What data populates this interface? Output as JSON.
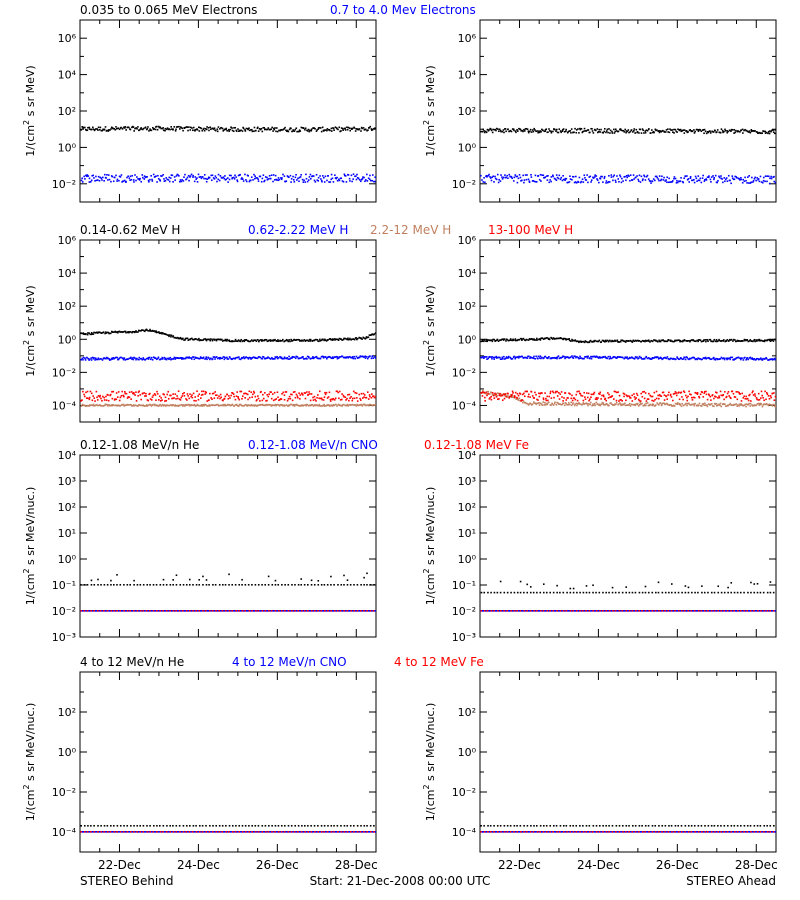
{
  "figure": {
    "footer_left": "STEREO Behind",
    "footer_center": "Start: 21-Dec-2008 00:00 UTC",
    "footer_right": "STEREO Ahead",
    "x_tick_labels": [
      "22-Dec",
      "24-Dec",
      "26-Dec",
      "28-Dec"
    ]
  },
  "colors": {
    "black": "#000000",
    "blue": "#0000ff",
    "tan": "#c08060",
    "red": "#ff0000",
    "grey": "#808080"
  },
  "chart_data": [
    {
      "type": "scatter",
      "panel": "electrons-behind",
      "ylabel_main": "1/(cm",
      "ylabel_sup": "2",
      "ylabel_tail": " s sr MeV)",
      "yscale": "log",
      "ylim_exp": [
        -3,
        7
      ],
      "ytick_exponents": [
        -2,
        0,
        2,
        4,
        6
      ],
      "ytick_style": "power",
      "x_unit": "days from start (21-Dec-2008 00:00 UTC)",
      "xlim": [
        0,
        7.5
      ],
      "xticks": [
        1,
        3,
        5,
        7
      ],
      "headers": [
        {
          "text": "0.035 to 0.065 MeV Electrons",
          "color": "black"
        },
        {
          "text": "0.7 to 4.0 Mev Electrons",
          "color": "blue"
        }
      ],
      "series": [
        {
          "name": "0.035 to 0.065 MeV Electrons",
          "color": "black",
          "log_level": [
            [
              0,
              1.0
            ],
            [
              2,
              1.02
            ],
            [
              4,
              0.98
            ],
            [
              6,
              0.97
            ],
            [
              7.3,
              1.0
            ],
            [
              7.5,
              1.1
            ]
          ],
          "spread": 0.12
        },
        {
          "name": "0.7 to 4.0 Mev Electrons",
          "color": "blue",
          "log_level": [
            [
              0,
              -1.7
            ],
            [
              7.5,
              -1.7
            ]
          ],
          "spread": 0.22
        }
      ]
    },
    {
      "type": "scatter",
      "panel": "electrons-ahead",
      "ylabel_main": "1/(cm",
      "ylabel_sup": "2",
      "ylabel_tail": " s sr MeV)",
      "yscale": "log",
      "ylim_exp": [
        -3,
        7
      ],
      "ytick_exponents": [
        -2,
        0,
        2,
        4,
        6
      ],
      "ytick_style": "power",
      "xlim": [
        0,
        7.5
      ],
      "xticks": [
        1,
        3,
        5,
        7
      ],
      "headers": [],
      "series": [
        {
          "name": "0.035 to 0.065 MeV Electrons",
          "color": "black",
          "log_level": [
            [
              0,
              0.93
            ],
            [
              3,
              0.9
            ],
            [
              7.5,
              0.86
            ]
          ],
          "spread": 0.12
        },
        {
          "name": "0.7 to 4.0 Mev Electrons",
          "color": "blue",
          "log_level": [
            [
              0,
              -1.72
            ],
            [
              7.5,
              -1.78
            ]
          ],
          "spread": 0.22
        }
      ]
    },
    {
      "type": "scatter",
      "panel": "protons-behind",
      "ylabel_main": "1/(cm",
      "ylabel_sup": "2",
      "ylabel_tail": " s sr MeV)",
      "yscale": "log",
      "ylim_exp": [
        -5,
        6
      ],
      "ytick_exponents": [
        -4,
        -2,
        0,
        2,
        4,
        6
      ],
      "ytick_style": "power",
      "xlim": [
        0,
        7.5
      ],
      "xticks": [
        1,
        3,
        5,
        7
      ],
      "headers": [
        {
          "text": "0.14-0.62 MeV H",
          "color": "black"
        },
        {
          "text": "0.62-2.22 MeV H",
          "color": "blue"
        },
        {
          "text": "2.2-12 MeV H",
          "color": "tan"
        },
        {
          "text": "13-100 MeV H",
          "color": "red"
        }
      ],
      "series": [
        {
          "name": "0.14-0.62 MeV H",
          "color": "black",
          "log_level": [
            [
              0,
              0.3
            ],
            [
              0.8,
              0.4
            ],
            [
              1.3,
              0.45
            ],
            [
              1.7,
              0.55
            ],
            [
              2.1,
              0.3
            ],
            [
              2.6,
              0.0
            ],
            [
              4,
              -0.1
            ],
            [
              6,
              -0.08
            ],
            [
              7.2,
              0.05
            ],
            [
              7.5,
              0.4
            ]
          ],
          "spread": 0.06
        },
        {
          "name": "0.62-2.22 MeV H",
          "color": "blue",
          "log_level": [
            [
              0,
              -1.2
            ],
            [
              7.5,
              -1.1
            ]
          ],
          "spread": 0.08
        },
        {
          "name": "2.2-12 MeV H",
          "color": "tan",
          "log_level": [
            [
              0,
              -4.0
            ],
            [
              7.5,
              -4.0
            ]
          ],
          "spread": 0.05
        },
        {
          "name": "13-100 MeV H",
          "color": "red",
          "log_level": [
            [
              0,
              -3.45
            ],
            [
              7.5,
              -3.45
            ]
          ],
          "spread": 0.3
        }
      ]
    },
    {
      "type": "scatter",
      "panel": "protons-ahead",
      "ylabel_main": "1/(cm",
      "ylabel_sup": "2",
      "ylabel_tail": " s sr MeV)",
      "yscale": "log",
      "ylim_exp": [
        -5,
        6
      ],
      "ytick_exponents": [
        -4,
        -2,
        0,
        2,
        4,
        6
      ],
      "ytick_style": "power",
      "xlim": [
        0,
        7.5
      ],
      "xticks": [
        1,
        3,
        5,
        7
      ],
      "headers": [],
      "series": [
        {
          "name": "0.14-0.62 MeV H",
          "color": "black",
          "log_level": [
            [
              0,
              -0.1
            ],
            [
              1.5,
              0.0
            ],
            [
              2.0,
              0.05
            ],
            [
              2.5,
              -0.15
            ],
            [
              5,
              -0.1
            ],
            [
              7.5,
              -0.08
            ]
          ],
          "spread": 0.06
        },
        {
          "name": "0.62-2.22 MeV H",
          "color": "blue",
          "log_level": [
            [
              0,
              -1.15
            ],
            [
              2,
              -1.1
            ],
            [
              7.5,
              -1.2
            ]
          ],
          "spread": 0.08
        },
        {
          "name": "2.2-12 MeV H",
          "color": "tan",
          "log_level": [
            [
              0,
              -3.2
            ],
            [
              0.8,
              -3.45
            ],
            [
              1.2,
              -3.9
            ],
            [
              7.5,
              -4.0
            ]
          ],
          "spread": 0.1
        },
        {
          "name": "13-100 MeV H",
          "color": "red",
          "log_level": [
            [
              0,
              -3.45
            ],
            [
              7.5,
              -3.45
            ]
          ],
          "spread": 0.3
        }
      ]
    },
    {
      "type": "scatter",
      "panel": "low-ions-behind",
      "ylabel_main": "1/(cm",
      "ylabel_sup": "2",
      "ylabel_tail": " s sr MeV/nuc.)",
      "yscale": "log",
      "ylim_exp": [
        -3,
        4
      ],
      "ytick_exponents": [
        -3,
        -2,
        -1,
        0,
        1,
        2,
        3,
        4
      ],
      "ytick_style": "power",
      "xlim": [
        0,
        7.5
      ],
      "xticks": [
        1,
        3,
        5,
        7
      ],
      "headers": [
        {
          "text": "0.12-1.08 MeV/n He",
          "color": "black"
        },
        {
          "text": "0.12-1.08 MeV/n CNO",
          "color": "blue"
        },
        {
          "text": "0.12-1.08 MeV Fe",
          "color": "red"
        }
      ],
      "series": [
        {
          "name": "0.12-1.08 MeV/n He",
          "color": "black",
          "log_level": [
            [
              0,
              -1.0
            ],
            [
              7.5,
              -1.0
            ]
          ],
          "spread": 0.0,
          "extra_levels": [
            -0.7
          ],
          "sparse": true
        },
        {
          "name": "0.12-1.08 MeV/n CNO",
          "color": "blue",
          "log_level": [
            [
              0,
              -2.0
            ],
            [
              7.5,
              -2.0
            ]
          ],
          "spread": 0.0
        },
        {
          "name": "0.12-1.08 MeV Fe",
          "color": "red",
          "log_level": [
            [
              0,
              -2.0
            ],
            [
              7.5,
              -2.0
            ]
          ],
          "spread": 0.0,
          "sparse": true
        }
      ]
    },
    {
      "type": "scatter",
      "panel": "low-ions-ahead",
      "ylabel_main": "1/(cm",
      "ylabel_sup": "2",
      "ylabel_tail": " s sr MeV/nuc.)",
      "yscale": "log",
      "ylim_exp": [
        -3,
        4
      ],
      "ytick_exponents": [
        -3,
        -2,
        -1,
        0,
        1,
        2,
        3,
        4
      ],
      "ytick_style": "power",
      "xlim": [
        0,
        7.5
      ],
      "xticks": [
        1,
        3,
        5,
        7
      ],
      "headers": [],
      "series": [
        {
          "name": "0.12-1.08 MeV/n He",
          "color": "black",
          "log_level": [
            [
              0,
              -1.3
            ],
            [
              7.5,
              -1.3
            ]
          ],
          "spread": 0.0,
          "extra_levels": [
            -1.0
          ],
          "sparse": true
        },
        {
          "name": "0.12-1.08 MeV/n CNO",
          "color": "blue",
          "log_level": [
            [
              0,
              -2.0
            ],
            [
              7.5,
              -2.0
            ]
          ],
          "spread": 0.0
        },
        {
          "name": "0.12-1.08 MeV Fe",
          "color": "red",
          "log_level": [
            [
              0,
              -2.0
            ],
            [
              7.5,
              -2.0
            ]
          ],
          "spread": 0.0,
          "sparse": true
        }
      ]
    },
    {
      "type": "scatter",
      "panel": "high-ions-behind",
      "ylabel_main": "1/(cm",
      "ylabel_sup": "2",
      "ylabel_tail": " s sr MeV/nuc.)",
      "yscale": "log",
      "ylim_exp": [
        -5,
        4
      ],
      "ytick_exponents": [
        -4,
        -2,
        0,
        2
      ],
      "ytick_style": "power",
      "xlim": [
        0,
        7.5
      ],
      "xticks": [
        1,
        3,
        5,
        7
      ],
      "headers": [
        {
          "text": "4 to 12 MeV/n He",
          "color": "black"
        },
        {
          "text": "4 to 12 MeV/n CNO",
          "color": "blue"
        },
        {
          "text": "4 to 12 MeV Fe",
          "color": "red"
        }
      ],
      "series": [
        {
          "name": "4 to 12 MeV/n He",
          "color": "black",
          "log_level": [
            [
              0,
              -3.7
            ],
            [
              7.5,
              -3.7
            ]
          ],
          "spread": 0.0,
          "sparse": true
        },
        {
          "name": "4 to 12 MeV/n CNO",
          "color": "blue",
          "log_level": [
            [
              0,
              -4.0
            ],
            [
              7.5,
              -4.0
            ]
          ],
          "spread": 0.0
        },
        {
          "name": "4 to 12 MeV Fe",
          "color": "red",
          "log_level": [
            [
              0,
              -4.0
            ],
            [
              7.5,
              -4.0
            ]
          ],
          "spread": 0.0,
          "sparse": true
        }
      ]
    },
    {
      "type": "scatter",
      "panel": "high-ions-ahead",
      "ylabel_main": "1/(cm",
      "ylabel_sup": "2",
      "ylabel_tail": " s sr MeV/nuc.)",
      "yscale": "log",
      "ylim_exp": [
        -5,
        4
      ],
      "ytick_exponents": [
        -4,
        -2,
        0,
        2
      ],
      "ytick_style": "power",
      "xlim": [
        0,
        7.5
      ],
      "xticks": [
        1,
        3,
        5,
        7
      ],
      "headers": [],
      "series": [
        {
          "name": "4 to 12 MeV/n He",
          "color": "black",
          "log_level": [
            [
              0,
              -3.7
            ],
            [
              7.5,
              -3.7
            ]
          ],
          "spread": 0.0,
          "sparse": true
        },
        {
          "name": "4 to 12 MeV/n CNO",
          "color": "blue",
          "log_level": [
            [
              0,
              -4.0
            ],
            [
              7.5,
              -4.0
            ]
          ],
          "spread": 0.0
        },
        {
          "name": "4 to 12 MeV Fe",
          "color": "red",
          "log_level": [
            [
              0,
              -4.0
            ],
            [
              7.5,
              -4.0
            ]
          ],
          "spread": 0.0,
          "sparse": true
        }
      ]
    }
  ]
}
